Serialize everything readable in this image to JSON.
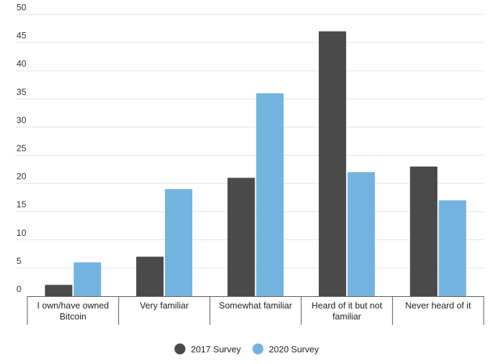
{
  "chart_data": {
    "type": "bar",
    "title": "",
    "xlabel": "",
    "ylabel": "",
    "categories": [
      [
        "I own/have owned",
        "Bitcoin"
      ],
      [
        "Very familiar"
      ],
      [
        "Somewhat familiar"
      ],
      [
        "Heard of it but not",
        "familiar"
      ],
      [
        "Never heard of it"
      ]
    ],
    "series": [
      {
        "name": "2017 Survey",
        "color": "#4a4a4a",
        "values": [
          2,
          7,
          21,
          47,
          23
        ]
      },
      {
        "name": "2020 Survey",
        "color": "#72b3e0",
        "values": [
          6,
          19,
          36,
          22,
          17
        ]
      }
    ],
    "ylim": [
      0,
      50
    ],
    "yticks": [
      0,
      5,
      10,
      15,
      20,
      25,
      30,
      35,
      40,
      45,
      50
    ],
    "grid": true,
    "legend_position": "bottom-center"
  }
}
